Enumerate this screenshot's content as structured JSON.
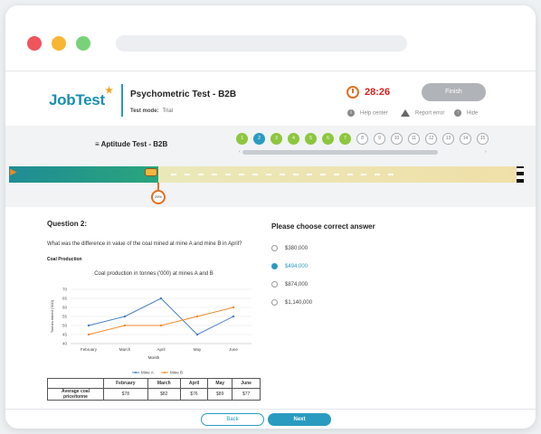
{
  "browser": {
    "traffic_lights": [
      "#f0545c",
      "#f7b733",
      "#79d279"
    ]
  },
  "header": {
    "logo_text": "JobTest",
    "test_title": "Psychometric Test - B2B",
    "mode_label": "Test mode:",
    "mode_value": "Trial",
    "timer": "28:26",
    "finish_label": "Finish",
    "help_label": "Help center",
    "report_label": "Report error",
    "hide_label": "Hide"
  },
  "section": {
    "title": "≡ Aptitude Test - B2B",
    "question_numbers": [
      "1",
      "2",
      "3",
      "4",
      "5",
      "6",
      "7",
      "8",
      "9",
      "10",
      "11",
      "12",
      "13",
      "14",
      "15"
    ],
    "answered_color": "#8dc63f",
    "current_color": "#2a9bc0",
    "progress_percent": 29,
    "progress_label": "29%"
  },
  "question": {
    "label": "Question 2:",
    "text": "What was the difference in value of the coal mined at mine A and mine B in April?",
    "context_label": "Coal Production"
  },
  "answers": {
    "title": "Please choose correct answer",
    "options": [
      "$380,000",
      "$494,000",
      "$874,000",
      "$1,140,000"
    ],
    "selected_index": 1
  },
  "chart_data": {
    "type": "line",
    "title": "Coal production in tonnes ('000) at mines A and B",
    "xlabel": "Month",
    "ylabel": "Tonnes mined ('000)",
    "categories": [
      "February",
      "March",
      "April",
      "May",
      "June"
    ],
    "ylim": [
      40,
      70
    ],
    "yticks": [
      40,
      45,
      50,
      55,
      60,
      65,
      70
    ],
    "series": [
      {
        "name": "Mine A",
        "color": "#4a7fc1",
        "values": [
          50,
          55,
          65,
          45,
          55
        ]
      },
      {
        "name": "Mine B",
        "color": "#f08a2a",
        "values": [
          45,
          50,
          50,
          55,
          60
        ]
      }
    ],
    "legend": "bottom"
  },
  "price_table": {
    "headers": [
      "",
      "February",
      "March",
      "April",
      "May",
      "June"
    ],
    "row_label": "Average coal price/tonne",
    "values": [
      "$78",
      "$82",
      "$76",
      "$89",
      "$77"
    ]
  },
  "footer": {
    "back_label": "Back",
    "next_label": "Next"
  }
}
